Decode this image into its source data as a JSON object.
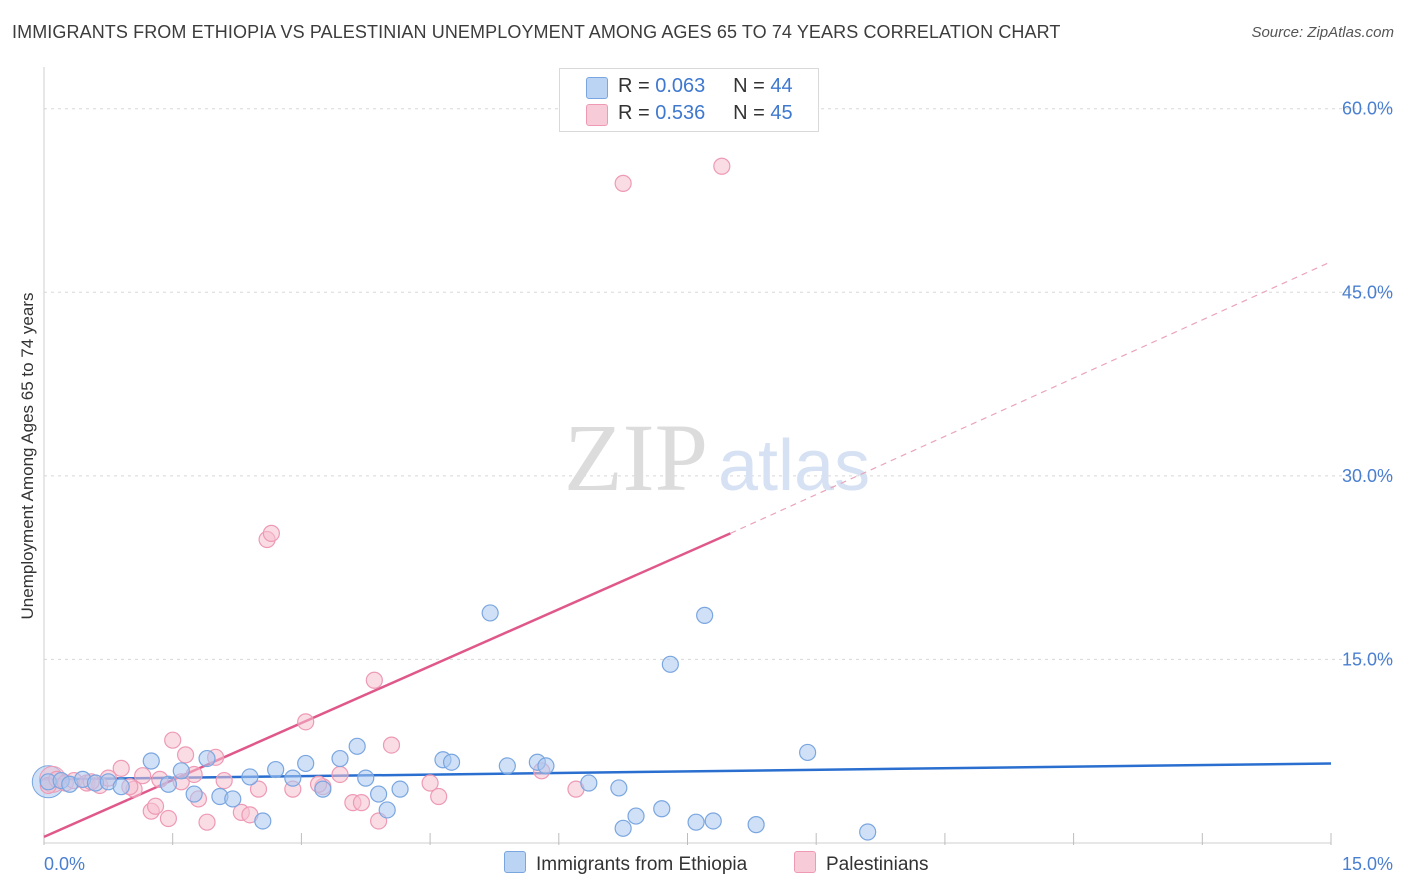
{
  "title": "IMMIGRANTS FROM ETHIOPIA VS PALESTINIAN UNEMPLOYMENT AMONG AGES 65 TO 74 YEARS CORRELATION CHART",
  "source": "Source: ZipAtlas.com",
  "watermark": {
    "zip": "ZIP",
    "atlas": "atlas"
  },
  "legend": {
    "rows": [
      {
        "r_label": "R =",
        "r_value": "0.063",
        "n_label": "N =",
        "n_value": "44"
      },
      {
        "r_label": "R =",
        "r_value": "0.536",
        "n_label": "N =",
        "n_value": "45"
      }
    ]
  },
  "bottom_legend": {
    "series1": "Immigrants from Ethiopia",
    "series2": "Palestinians"
  },
  "colors": {
    "blue_fill": "#aac8f0",
    "blue_stroke": "#7aa6e0",
    "blue_line": "#2a6fcf",
    "pink_fill": "#f6bfd0",
    "pink_stroke": "#ee9ab5",
    "pink_line": "#e0588a",
    "axis_text": "#4a7fd0",
    "grid": "#d8d8d8"
  },
  "chart_data": {
    "type": "scatter",
    "title": "IMMIGRANTS FROM ETHIOPIA VS PALESTINIAN UNEMPLOYMENT AMONG AGES 65 TO 74 YEARS CORRELATION CHART",
    "xlabel": "",
    "ylabel": "Unemployment Among Ages 65 to 74 years",
    "xlim": [
      0,
      15
    ],
    "ylim": [
      0,
      63
    ],
    "x_tick_labels": [
      "0.0%",
      "15.0%"
    ],
    "y_ticks": [
      15,
      30,
      45,
      60
    ],
    "y_tick_labels": [
      "15.0%",
      "30.0%",
      "45.0%",
      "60.0%"
    ],
    "grid": true,
    "legend_position": "top-center",
    "series": [
      {
        "name": "Immigrants from Ethiopia",
        "r": 0.063,
        "n": 44,
        "trend": {
          "x0": 0,
          "y0": 5.2,
          "x1": 15,
          "y1": 6.5,
          "dashed_to": null
        },
        "points": [
          [
            0.05,
            5.0
          ],
          [
            0.2,
            5.1
          ],
          [
            0.3,
            4.8
          ],
          [
            0.45,
            5.2
          ],
          [
            0.6,
            4.9
          ],
          [
            0.75,
            5.0
          ],
          [
            0.9,
            4.6
          ],
          [
            1.25,
            6.7
          ],
          [
            1.45,
            4.8
          ],
          [
            1.6,
            5.9
          ],
          [
            1.75,
            4.0
          ],
          [
            1.9,
            6.9
          ],
          [
            2.05,
            3.8
          ],
          [
            2.2,
            3.6
          ],
          [
            2.4,
            5.4
          ],
          [
            2.55,
            1.8
          ],
          [
            2.7,
            6.0
          ],
          [
            2.9,
            5.3
          ],
          [
            3.05,
            6.5
          ],
          [
            3.25,
            4.4
          ],
          [
            3.45,
            6.9
          ],
          [
            3.65,
            7.9
          ],
          [
            3.75,
            5.3
          ],
          [
            3.9,
            4.0
          ],
          [
            4.0,
            2.7
          ],
          [
            4.15,
            4.4
          ],
          [
            4.65,
            6.8
          ],
          [
            4.75,
            6.6
          ],
          [
            5.4,
            6.3
          ],
          [
            5.75,
            6.6
          ],
          [
            5.85,
            6.3
          ],
          [
            6.35,
            4.9
          ],
          [
            6.7,
            4.5
          ],
          [
            6.75,
            1.2
          ],
          [
            6.9,
            2.2
          ],
          [
            7.2,
            2.8
          ],
          [
            7.3,
            14.6
          ],
          [
            7.6,
            1.7
          ],
          [
            7.7,
            18.6
          ],
          [
            7.8,
            1.8
          ],
          [
            8.3,
            1.5
          ],
          [
            8.9,
            7.4
          ],
          [
            9.6,
            0.9
          ],
          [
            5.2,
            18.8
          ]
        ]
      },
      {
        "name": "Palestinians",
        "r": 0.536,
        "n": 45,
        "trend": {
          "x0": 0,
          "y0": 0.5,
          "x1": 8.0,
          "y1": 25.3,
          "dashed_to": {
            "x": 15,
            "y": 47.5
          }
        },
        "points": [
          [
            0.05,
            4.7
          ],
          [
            0.15,
            5.2
          ],
          [
            0.25,
            4.9
          ],
          [
            0.35,
            5.1
          ],
          [
            0.5,
            4.9
          ],
          [
            0.65,
            4.7
          ],
          [
            0.75,
            5.3
          ],
          [
            0.9,
            6.1
          ],
          [
            1.05,
            4.4
          ],
          [
            1.15,
            5.5
          ],
          [
            1.25,
            2.6
          ],
          [
            1.3,
            3.0
          ],
          [
            1.45,
            2.0
          ],
          [
            1.5,
            8.4
          ],
          [
            1.6,
            5.0
          ],
          [
            1.65,
            7.2
          ],
          [
            1.75,
            5.6
          ],
          [
            1.8,
            3.6
          ],
          [
            1.9,
            1.7
          ],
          [
            2.0,
            7.0
          ],
          [
            2.3,
            2.5
          ],
          [
            2.4,
            2.3
          ],
          [
            2.5,
            4.4
          ],
          [
            2.6,
            24.8
          ],
          [
            2.65,
            25.3
          ],
          [
            2.9,
            4.4
          ],
          [
            3.05,
            9.9
          ],
          [
            3.25,
            4.6
          ],
          [
            3.45,
            5.6
          ],
          [
            3.6,
            3.3
          ],
          [
            3.7,
            3.3
          ],
          [
            3.85,
            13.3
          ],
          [
            3.9,
            1.8
          ],
          [
            4.05,
            8.0
          ],
          [
            4.6,
            3.8
          ],
          [
            5.8,
            5.9
          ],
          [
            6.2,
            4.4
          ],
          [
            6.75,
            53.9
          ],
          [
            7.9,
            55.3
          ],
          [
            1.0,
            4.6
          ],
          [
            0.55,
            5.0
          ],
          [
            1.35,
            5.2
          ],
          [
            2.1,
            5.1
          ],
          [
            3.2,
            4.8
          ],
          [
            4.5,
            4.9
          ]
        ]
      }
    ]
  }
}
